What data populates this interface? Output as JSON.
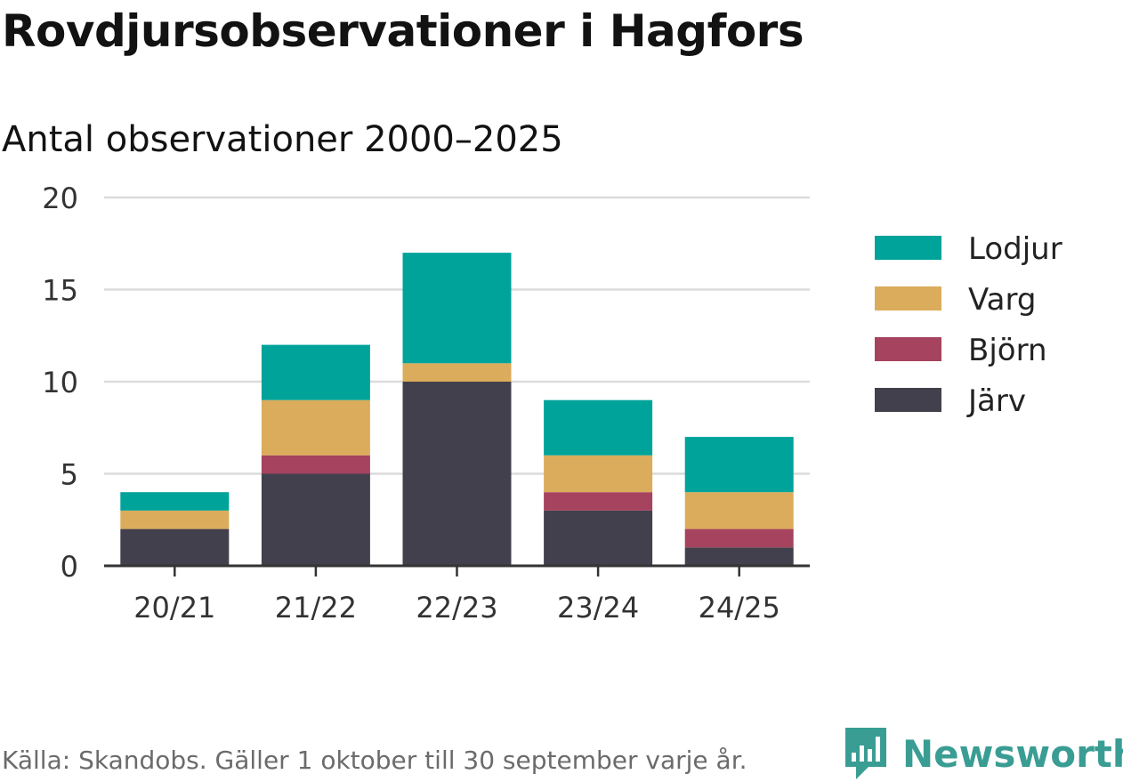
{
  "header": {
    "title": "Rovdjursobservationer i Hagfors",
    "subtitle": "Antal observationer 2000–2025"
  },
  "footer": {
    "source": "Källa: Skandobs. Gäller 1 oktober till 30 september varje år.",
    "brand": "Newsworthy",
    "brand_icon": "bar-chart-speech-bubble-icon",
    "brand_color": "#3a9d94"
  },
  "chart_data": {
    "type": "bar",
    "stacked": true,
    "categories": [
      "20/21",
      "21/22",
      "22/23",
      "23/24",
      "24/25"
    ],
    "series": [
      {
        "name": "Järv",
        "color": "#43404d",
        "values": [
          2,
          5,
          10,
          3,
          1
        ]
      },
      {
        "name": "Björn",
        "color": "#a6435e",
        "values": [
          0,
          1,
          0,
          1,
          1
        ]
      },
      {
        "name": "Varg",
        "color": "#dbac5b",
        "values": [
          1,
          3,
          1,
          2,
          2
        ]
      },
      {
        "name": "Lodjur",
        "color": "#00a39a",
        "values": [
          1,
          3,
          6,
          3,
          3
        ]
      }
    ],
    "legend_order": [
      "Lodjur",
      "Varg",
      "Björn",
      "Järv"
    ],
    "ylim": [
      0,
      20
    ],
    "yticks": [
      0,
      5,
      10,
      15,
      20
    ],
    "grid": true,
    "legend_position": "right"
  }
}
